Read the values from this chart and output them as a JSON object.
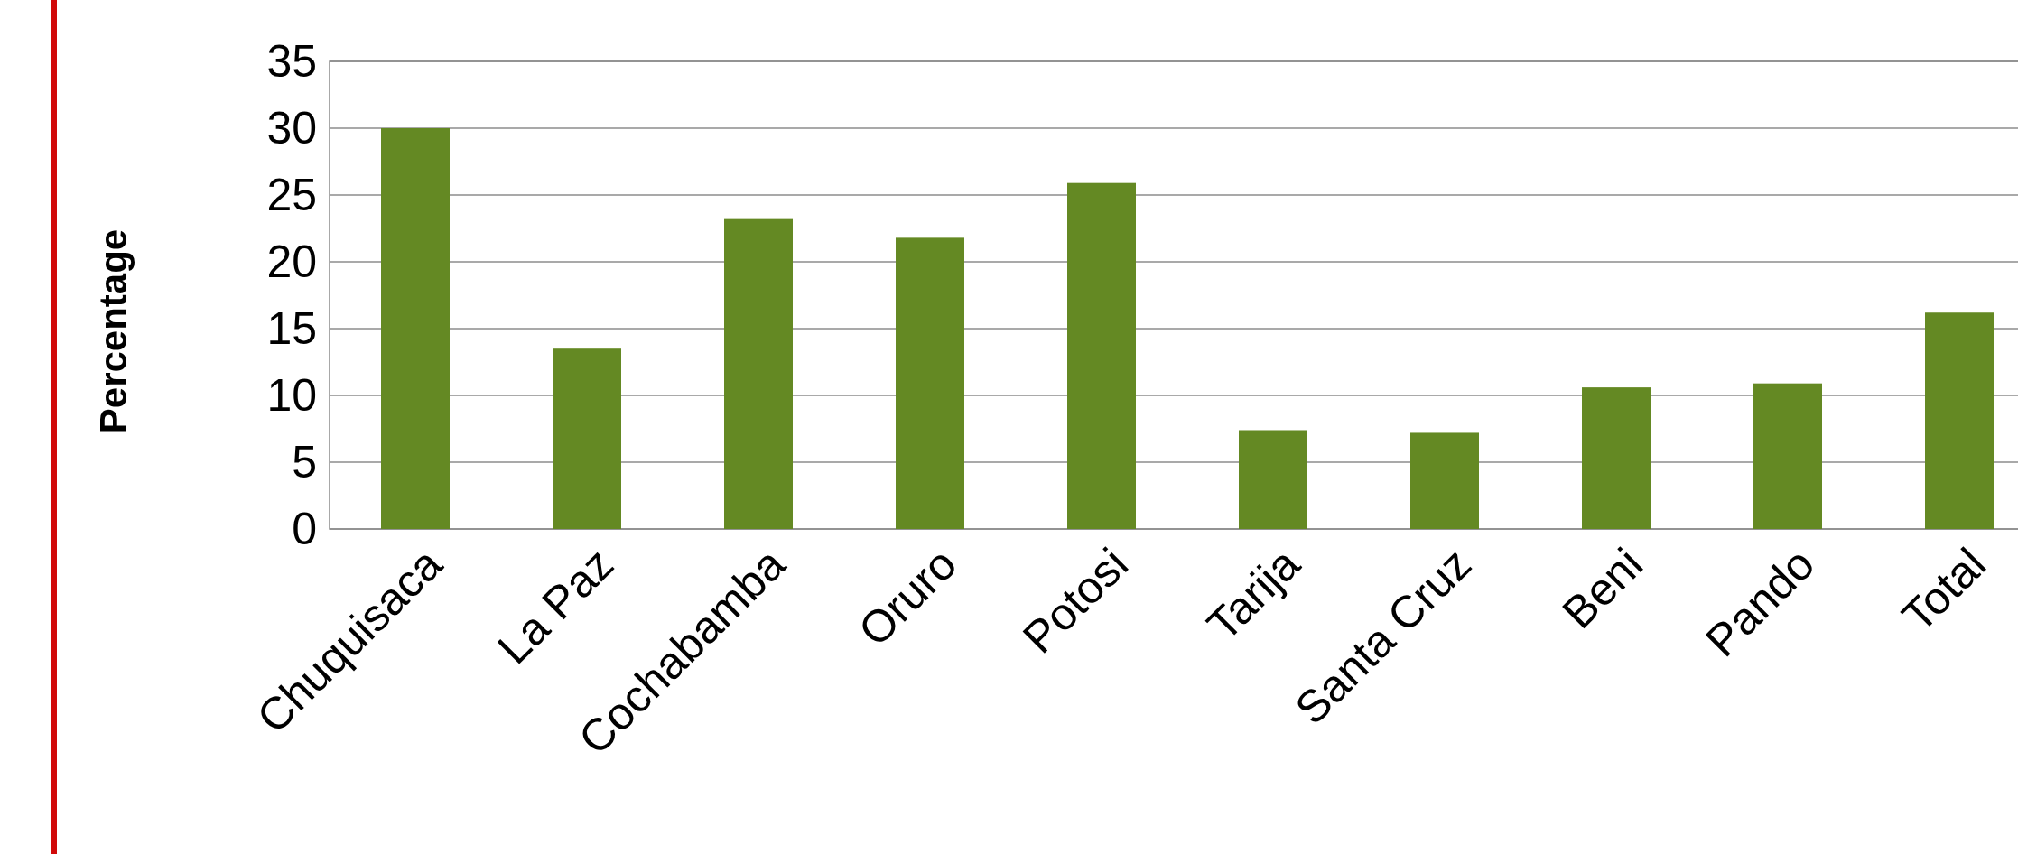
{
  "chart_data": {
    "type": "bar",
    "ylabel": "Percentage",
    "categories": [
      "Chuquisaca",
      "La Paz",
      "Cochabamba",
      "Oruro",
      "Potosi",
      "Tarija",
      "Santa Cruz",
      "Beni",
      "Pando",
      "Total"
    ],
    "values": [
      30.0,
      13.5,
      23.2,
      21.8,
      25.9,
      7.4,
      7.2,
      10.6,
      10.9,
      16.2
    ],
    "color": "#648923",
    "ylim": [
      0,
      35
    ],
    "yticks": [
      0,
      5,
      10,
      15,
      20,
      25,
      30,
      35
    ],
    "grid": "y"
  }
}
